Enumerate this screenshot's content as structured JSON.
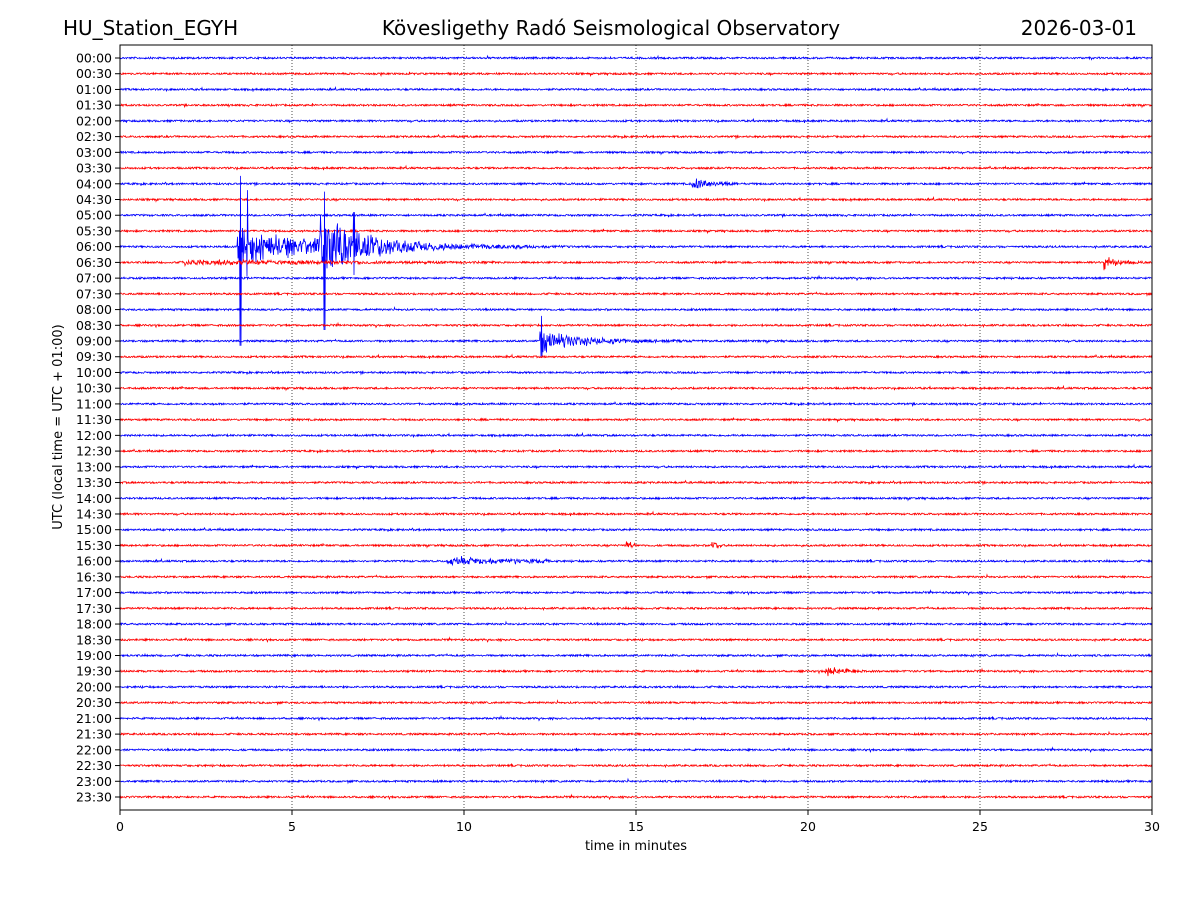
{
  "header": {
    "station": "HU_Station_EGYH",
    "title": "Kövesligethy Radó Seismological Observatory",
    "date": "2026-03-01"
  },
  "chart_data": {
    "type": "line",
    "title": "Kövesligethy Radó Seismological Observatory",
    "xlabel": "time in minutes",
    "ylabel": "UTC (local time = UTC + 01:00)",
    "xlim": [
      0,
      30
    ],
    "xticks": [
      "0",
      "5",
      "10",
      "15",
      "20",
      "25",
      "30"
    ],
    "xtick_values": [
      0,
      5,
      10,
      15,
      20,
      25,
      30
    ],
    "grid": "vertical dotted",
    "colors": [
      "#0000ff",
      "#ff0000"
    ],
    "rows": [
      "00:00",
      "00:30",
      "01:00",
      "01:30",
      "02:00",
      "02:30",
      "03:00",
      "03:30",
      "04:00",
      "04:30",
      "05:00",
      "05:30",
      "06:00",
      "06:30",
      "07:00",
      "07:30",
      "08:00",
      "08:30",
      "09:00",
      "09:30",
      "10:00",
      "10:30",
      "11:00",
      "11:30",
      "12:00",
      "12:30",
      "13:00",
      "13:30",
      "14:00",
      "14:30",
      "15:00",
      "15:30",
      "16:00",
      "16:30",
      "17:00",
      "17:30",
      "18:00",
      "18:30",
      "19:00",
      "19:30",
      "20:00",
      "20:30",
      "21:00",
      "21:30",
      "22:00",
      "22:30",
      "23:00",
      "23:30"
    ],
    "events": [
      {
        "row": "04:00",
        "start_min": 16.6,
        "end_min": 18.0,
        "amp": 0.35,
        "decay": 0.6
      },
      {
        "row": "06:00",
        "start_min": 3.4,
        "end_min": 13.0,
        "amp": 0.9,
        "decay": 2.5
      },
      {
        "row": "06:00",
        "start_min": 5.8,
        "end_min": 12.0,
        "amp": 1.2,
        "decay": 1.3
      },
      {
        "row": "06:30",
        "start_min": 1.8,
        "end_min": 11.0,
        "amp": 0.12,
        "decay": 4
      },
      {
        "row": "06:30",
        "start_min": 28.6,
        "end_min": 30.0,
        "amp": 0.35,
        "decay": 0.4
      },
      {
        "row": "09:00",
        "start_min": 12.2,
        "end_min": 18.5,
        "amp": 0.55,
        "decay": 1.2
      },
      {
        "row": "16:00",
        "start_min": 9.5,
        "end_min": 12.5,
        "amp": 0.15,
        "decay": 3
      },
      {
        "row": "19:30",
        "start_min": 20.5,
        "end_min": 21.6,
        "amp": 0.22,
        "decay": 0.6
      },
      {
        "row": "15:30",
        "start_min": 14.7,
        "end_min": 15.0,
        "amp": 0.25,
        "decay": 0.2
      },
      {
        "row": "15:30",
        "start_min": 17.2,
        "end_min": 17.5,
        "amp": 0.22,
        "decay": 0.2
      }
    ],
    "spikes": [
      {
        "row": "06:00",
        "min": 3.5,
        "up": 4.5,
        "down": 6.3
      },
      {
        "row": "06:00",
        "min": 3.7,
        "up": 3.6,
        "down": 1.9
      },
      {
        "row": "06:00",
        "min": 5.95,
        "up": 3.5,
        "down": 5.3
      },
      {
        "row": "06:00",
        "min": 6.8,
        "up": 2.2,
        "down": 1.8
      },
      {
        "row": "09:00",
        "min": 12.25,
        "up": 1.6,
        "down": 1.0
      }
    ]
  }
}
